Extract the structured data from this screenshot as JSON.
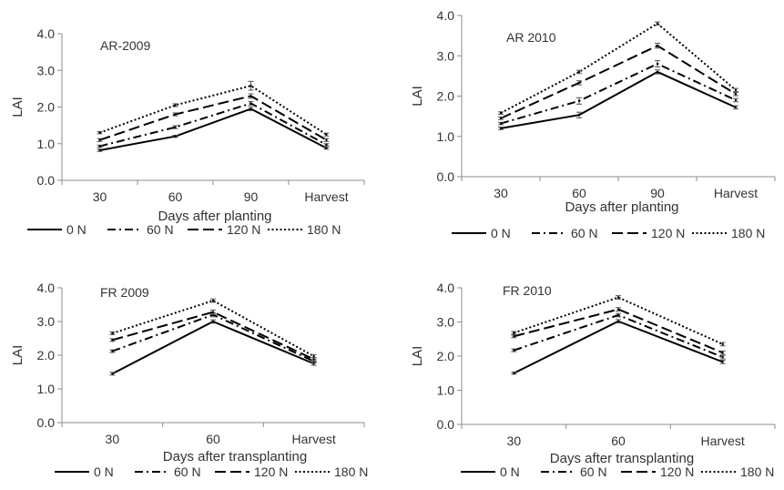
{
  "chart_data": [
    {
      "type": "line",
      "title": "AR-2009",
      "xlabel": "Days after planting",
      "ylabel": "LAI",
      "categories": [
        "30",
        "60",
        "90",
        "Harvest"
      ],
      "ylim": [
        0,
        4
      ],
      "yticks": [
        "0.0",
        "1.0",
        "2.0",
        "3.0",
        "4.0"
      ],
      "grid": false,
      "legend_position": "bottom",
      "series": [
        {
          "name": "0 N",
          "values": [
            0.82,
            1.2,
            1.95,
            0.88
          ],
          "err": [
            0.03,
            0.03,
            0.05,
            0.03
          ]
        },
        {
          "name": "60 N",
          "values": [
            0.93,
            1.45,
            2.1,
            0.97
          ],
          "err": [
            0.03,
            0.04,
            0.05,
            0.03
          ]
        },
        {
          "name": "120 N",
          "values": [
            1.1,
            1.8,
            2.3,
            1.1
          ],
          "err": [
            0.04,
            0.04,
            0.06,
            0.04
          ]
        },
        {
          "name": "180 N",
          "values": [
            1.3,
            2.05,
            2.58,
            1.25
          ],
          "err": [
            0.03,
            0.04,
            0.12,
            0.04
          ]
        }
      ]
    },
    {
      "type": "line",
      "title": "AR 2010",
      "xlabel": "Days after planting",
      "ylabel": "LAI",
      "categories": [
        "30",
        "60",
        "90",
        "Harvest"
      ],
      "ylim": [
        0,
        4
      ],
      "yticks": [
        "0.0",
        "1.0",
        "2.0",
        "3.0",
        "4.0"
      ],
      "grid": false,
      "legend_position": "bottom",
      "series": [
        {
          "name": "0 N",
          "values": [
            1.2,
            1.53,
            2.6,
            1.72
          ],
          "err": [
            0.03,
            0.07,
            0.05,
            0.04
          ]
        },
        {
          "name": "60 N",
          "values": [
            1.32,
            1.88,
            2.8,
            1.9
          ],
          "err": [
            0.03,
            0.08,
            0.08,
            0.04
          ]
        },
        {
          "name": "120 N",
          "values": [
            1.45,
            2.33,
            3.25,
            2.05
          ],
          "err": [
            0.03,
            0.05,
            0.06,
            0.04
          ]
        },
        {
          "name": "180 N",
          "values": [
            1.58,
            2.6,
            3.8,
            2.15
          ],
          "err": [
            0.03,
            0.04,
            0.04,
            0.04
          ]
        }
      ]
    },
    {
      "type": "line",
      "title": "FR 2009",
      "xlabel": "Days after transplanting",
      "ylabel": "LAI",
      "categories": [
        "30",
        "60",
        "Harvest"
      ],
      "ylim": [
        0,
        4
      ],
      "yticks": [
        "0.0",
        "1.0",
        "2.0",
        "3.0",
        "4.0"
      ],
      "grid": false,
      "legend_position": "bottom",
      "series": [
        {
          "name": "0 N",
          "values": [
            1.45,
            3.0,
            1.75
          ],
          "err": [
            0.04,
            0.05,
            0.05
          ]
        },
        {
          "name": "60 N",
          "values": [
            2.12,
            3.2,
            1.82
          ],
          "err": [
            0.04,
            0.06,
            0.05
          ]
        },
        {
          "name": "120 N",
          "values": [
            2.45,
            3.28,
            1.88
          ],
          "err": [
            0.04,
            0.06,
            0.05
          ]
        },
        {
          "name": "180 N",
          "values": [
            2.65,
            3.62,
            1.97
          ],
          "err": [
            0.04,
            0.05,
            0.05
          ]
        }
      ]
    },
    {
      "type": "line",
      "title": "FR 2010",
      "xlabel": "Days after transplanting",
      "ylabel": "LAI",
      "categories": [
        "30",
        "60",
        "Harvest"
      ],
      "ylim": [
        0,
        4
      ],
      "yticks": [
        "0.0",
        "1.0",
        "2.0",
        "3.0",
        "4.0"
      ],
      "grid": false,
      "legend_position": "bottom",
      "series": [
        {
          "name": "0 N",
          "values": [
            1.5,
            3.02,
            1.83
          ],
          "err": [
            0.03,
            0.05,
            0.05
          ]
        },
        {
          "name": "60 N",
          "values": [
            2.17,
            3.2,
            1.97
          ],
          "err": [
            0.04,
            0.05,
            0.05
          ]
        },
        {
          "name": "120 N",
          "values": [
            2.58,
            3.37,
            2.1
          ],
          "err": [
            0.04,
            0.05,
            0.05
          ]
        },
        {
          "name": "180 N",
          "values": [
            2.68,
            3.72,
            2.35
          ],
          "err": [
            0.04,
            0.05,
            0.05
          ]
        }
      ]
    }
  ],
  "legend": {
    "items": [
      "0 N",
      "60 N",
      "120 N",
      "180 N"
    ]
  },
  "colors": {
    "line": "#000000",
    "axis": "#8c8c8c",
    "text": "#333333",
    "background": "#ffffff"
  },
  "line_styles": [
    "solid",
    "dash-dot",
    "long-dash",
    "dotted"
  ]
}
